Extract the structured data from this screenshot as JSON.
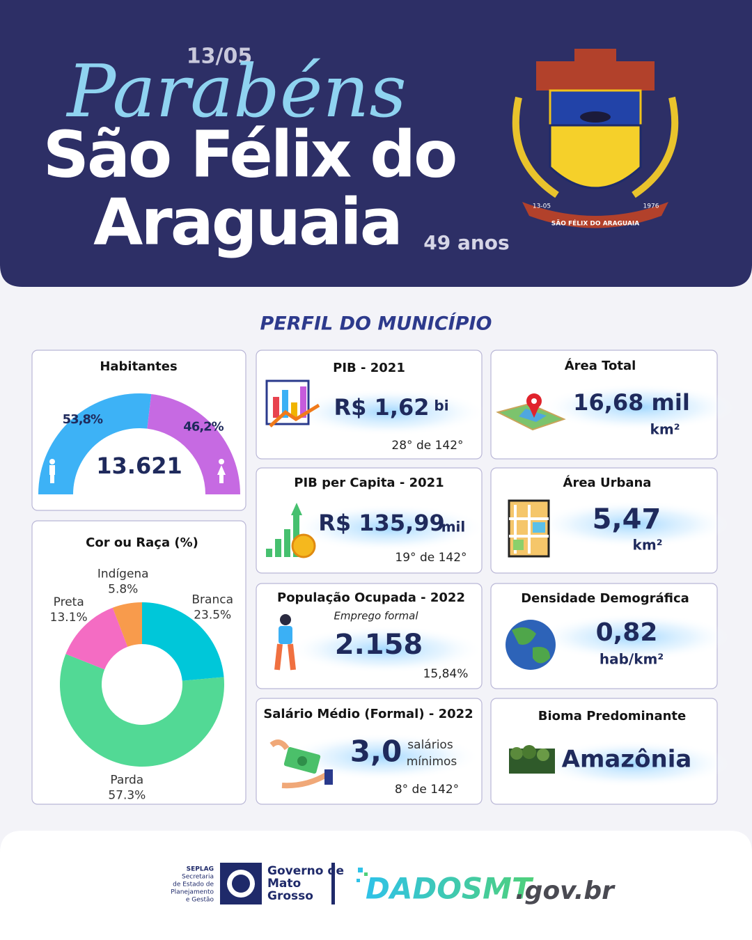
{
  "header": {
    "date": "13/05",
    "greeting": "Parabéns",
    "city_line1": "São Félix do",
    "city_line2": "Araguaia",
    "age": "49 anos",
    "emblem": {
      "left": "13-05",
      "right": "1976",
      "ribbon": "SÃO FÉLIX DO ARAGUAIA"
    }
  },
  "section_title": "PERFIL DO MUNICÍPIO",
  "chart_data": [
    {
      "type": "half-donut",
      "title": "Habitantes",
      "center_label": "13.621",
      "values": [
        53.8,
        46.2
      ],
      "value_labels": [
        "53,8%",
        "46,2%"
      ],
      "colors": [
        "#3db2f6",
        "#c66ae2"
      ]
    },
    {
      "type": "donut",
      "title": "Cor ou Raça (%)",
      "categories": [
        "Branca",
        "Parda",
        "Preta",
        "Indígena"
      ],
      "values": [
        23.5,
        57.3,
        13.1,
        5.8
      ],
      "value_labels": [
        "23.5%",
        "57.3%",
        "13.1%",
        "5.8%"
      ],
      "colors": [
        "#00c7d9",
        "#52d995",
        "#f46cc3",
        "#f89b4c"
      ]
    }
  ],
  "cards": [
    {
      "title": "PIB - 2021",
      "value": "R$ 1,62",
      "unit": "bi",
      "rank": "28° de 142°"
    },
    {
      "title": "Área Total",
      "value": "16,68 mil",
      "unit": "km²"
    },
    {
      "title": "PIB per Capita - 2021",
      "value": "R$ 135,99",
      "unit": "mil",
      "rank": "19° de 142°"
    },
    {
      "title": "Área Urbana",
      "value": "5,47",
      "unit": "km²"
    },
    {
      "title": "População  Ocupada - 2022",
      "subtitle": "Emprego formal",
      "value": "2.158",
      "rank": "15,84%"
    },
    {
      "title": "Densidade Demográfica",
      "value": "0,82",
      "unit": "hab/km²"
    },
    {
      "title": "Salário Médio (Formal) - 2022",
      "value": "3,0",
      "unit": [
        "salários",
        "mínimos"
      ],
      "rank": "8° de 142°"
    },
    {
      "title": "Bioma Predominante",
      "value": "Amazônia"
    }
  ],
  "footer": {
    "seplag": [
      "SEPLAG",
      "Secretaria",
      "de Estado de",
      "Planejamento",
      "e Gestão"
    ],
    "governo": [
      "Governo de",
      "Mato",
      "Grosso"
    ],
    "site_main": "DADOSMT",
    "site_suffix": ".gov.br"
  }
}
